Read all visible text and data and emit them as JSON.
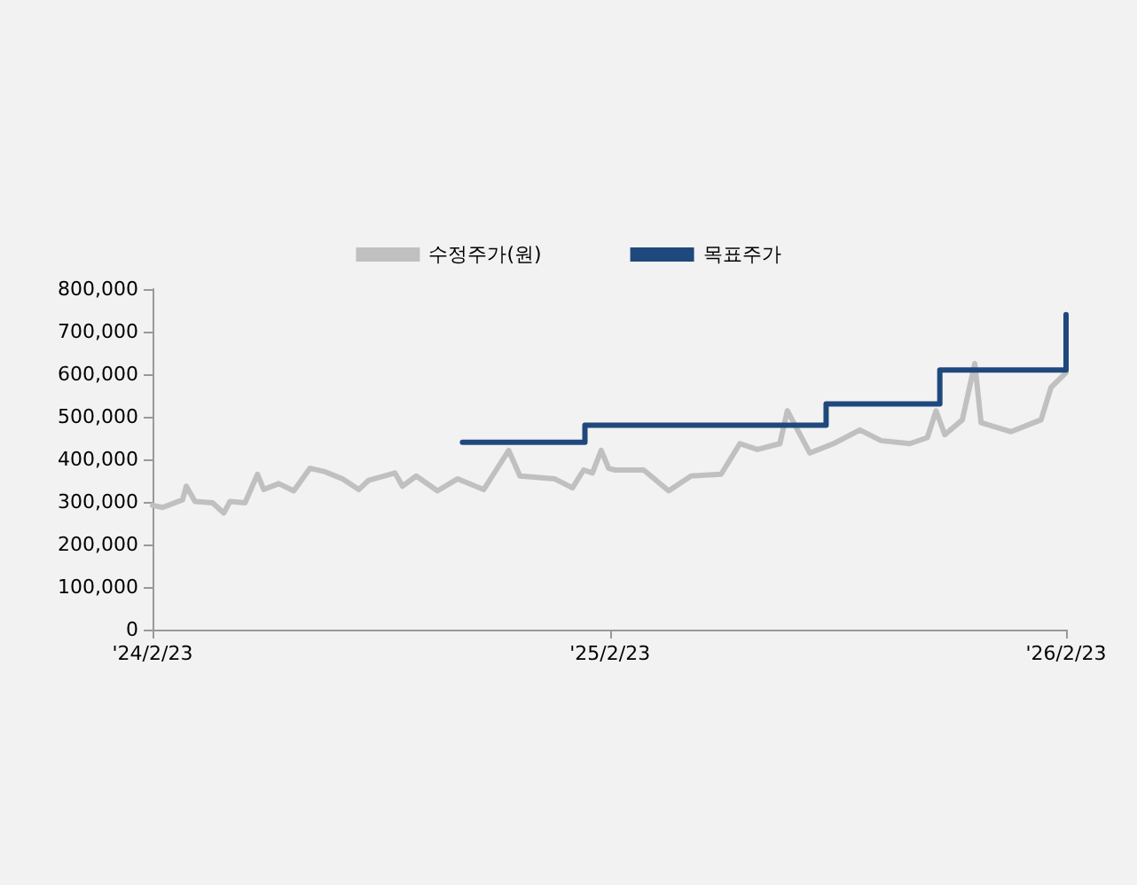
{
  "chart_data": {
    "type": "line",
    "legend": "top",
    "marker": "none",
    "line_style": "solid",
    "grid": false,
    "xlim": [
      "2024-02-23",
      "2026-02-23"
    ],
    "xticks": [
      {
        "value": "2024-02-23",
        "label": "'24/2/23"
      },
      {
        "value": "2025-02-23",
        "label": "'25/2/23"
      },
      {
        "value": "2026-02-23",
        "label": "'26/2/23"
      }
    ],
    "ylim": [
      0,
      800000
    ],
    "yticks": [
      0,
      {
        "value": 100000,
        "label": "100,000"
      },
      {
        "value": 200000,
        "label": "200,000"
      },
      {
        "value": 300000,
        "label": "300,000"
      },
      {
        "value": 400000,
        "label": "400,000"
      },
      {
        "value": 500000,
        "label": "500,000"
      },
      {
        "value": 600000,
        "label": "600,000"
      },
      {
        "value": 700000,
        "label": "700,000"
      },
      {
        "value": 800000,
        "label": "800,000"
      }
    ],
    "series": [
      {
        "name": "수정주가(원)",
        "color": "#c0c0c0",
        "x": [
          "2024-02-23",
          "2024-03-02",
          "2024-03-18",
          "2024-03-21",
          "2024-03-28",
          "2024-04-11",
          "2024-04-20",
          "2024-04-25",
          "2024-05-07",
          "2024-05-17",
          "2024-05-22",
          "2024-06-03",
          "2024-06-15",
          "2024-06-28",
          "2024-07-10",
          "2024-07-24",
          "2024-08-06",
          "2024-08-14",
          "2024-09-04",
          "2024-09-10",
          "2024-09-21",
          "2024-10-08",
          "2024-10-24",
          "2024-11-14",
          "2024-11-24",
          "2024-12-04",
          "2024-12-13",
          "2025-01-10",
          "2025-01-24",
          "2025-02-02",
          "2025-02-09",
          "2025-02-16",
          "2025-02-22",
          "2025-02-27",
          "2025-03-22",
          "2025-04-11",
          "2025-04-29",
          "2025-05-23",
          "2025-06-07",
          "2025-06-21",
          "2025-07-09",
          "2025-07-15",
          "2025-08-02",
          "2025-08-21",
          "2025-09-11",
          "2025-09-28",
          "2025-10-21",
          "2025-11-04",
          "2025-11-11",
          "2025-11-18",
          "2025-12-02",
          "2025-12-12",
          "2025-12-17",
          "2026-01-10",
          "2026-02-03",
          "2026-02-11",
          "2026-02-23"
        ],
        "values": [
          292000,
          287000,
          305000,
          337000,
          301000,
          298000,
          274000,
          301000,
          298000,
          365000,
          329000,
          343000,
          326000,
          379000,
          371000,
          354000,
          329000,
          351000,
          368000,
          337000,
          361000,
          326000,
          354000,
          329000,
          375000,
          421000,
          361000,
          354000,
          333000,
          375000,
          368000,
          421000,
          379000,
          375000,
          375000,
          326000,
          361000,
          365000,
          437000,
          423000,
          437000,
          514000,
          415000,
          437000,
          469000,
          444000,
          437000,
          451000,
          514000,
          458000,
          493000,
          625000,
          486000,
          465000,
          493000,
          569000,
          604000
        ]
      },
      {
        "name": "목표주가",
        "color": "#1f497d",
        "type": "step",
        "x": [
          "2024-10-28",
          "2025-02-03",
          "2025-08-15",
          "2025-11-14",
          "2026-02-23"
        ],
        "values": [
          440000,
          480000,
          530000,
          610000,
          740000
        ]
      }
    ]
  }
}
